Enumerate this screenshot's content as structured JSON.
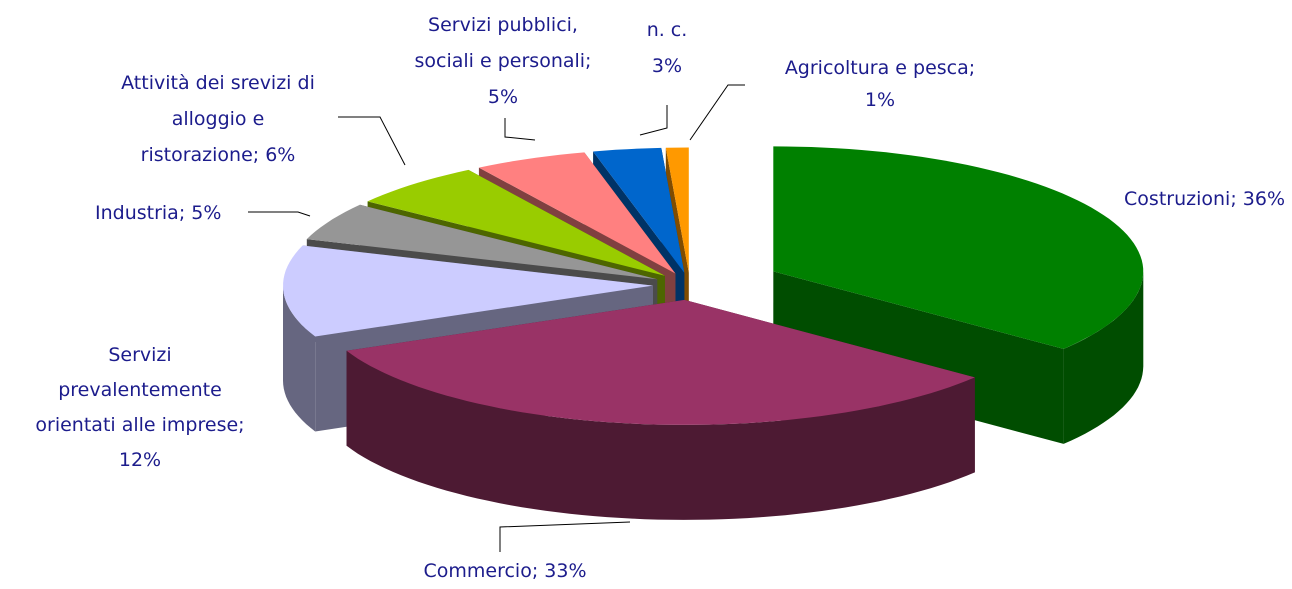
{
  "chart_data": {
    "type": "pie3d",
    "values": [
      36,
      33,
      12,
      5,
      6,
      5,
      3,
      1
    ],
    "value_labels": [
      "Costruzioni; 36%",
      "Commercio; 33%",
      "Servizi\nprevalentemente\norientati alle imprese;\n12%",
      "Industria; 5%",
      "Attività dei srevizi di\nalloggio e\nristorazione; 6%",
      "Servizi pubblici,\nsociali e personali;\n5%",
      "n. c.\n3%",
      "Agricoltura e pesca;\n1%"
    ],
    "colors": [
      "#008000",
      "#993366",
      "#ccccff",
      "#969696",
      "#99cc00",
      "#ff8080",
      "#0066cc",
      "#ff9900"
    ],
    "side_colors": [
      "#004d00",
      "#4d1a33",
      "#666680",
      "#4b4b4b",
      "#4d6600",
      "#804040",
      "#003366",
      "#804c00"
    ]
  }
}
